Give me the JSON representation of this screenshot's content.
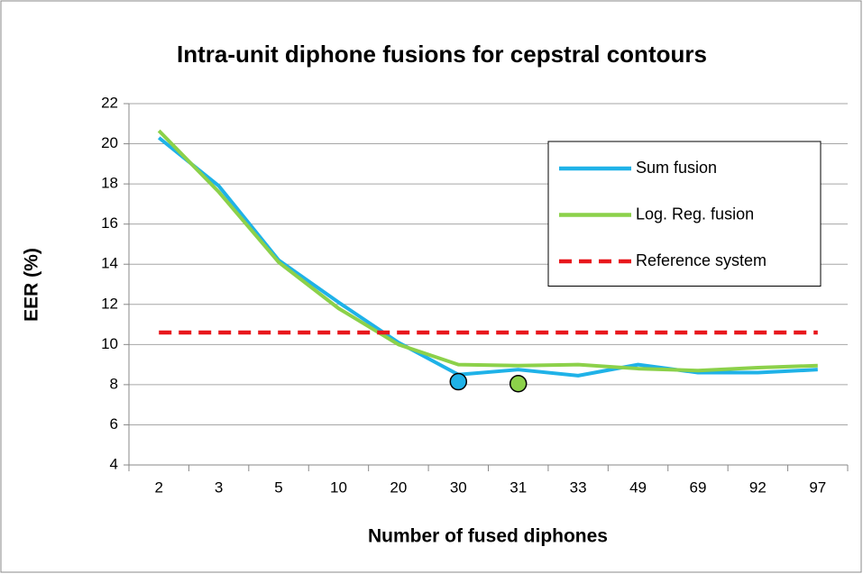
{
  "chart_data": {
    "type": "line",
    "title": "Intra-unit diphone fusions for cepstral contours",
    "x_label": "Number of fused diphones",
    "y_label": "EER (%)",
    "categories": [
      "2",
      "3",
      "5",
      "10",
      "20",
      "30",
      "31",
      "33",
      "49",
      "69",
      "92",
      "97"
    ],
    "series": [
      {
        "name": "Sum fusion",
        "color": "#1fb2e8",
        "values": [
          20.3,
          17.9,
          14.2,
          12.1,
          10.1,
          8.5,
          8.75,
          8.45,
          9.0,
          8.6,
          8.6,
          8.75
        ]
      },
      {
        "name": "Log. Reg. fusion",
        "color": "#8cd14a",
        "values": [
          20.65,
          17.6,
          14.1,
          11.8,
          10.0,
          9.0,
          8.95,
          9.0,
          8.8,
          8.7,
          8.85,
          8.95
        ]
      },
      {
        "name": "Reference system",
        "color": "#e8171c",
        "line_style": "dashed",
        "values": [
          10.6,
          10.6,
          10.6,
          10.6,
          10.6,
          10.6,
          10.6,
          10.6,
          10.6,
          10.6,
          10.6,
          10.6
        ]
      },
      {
        "color": "#1fb2e8",
        "marker": true,
        "values": [
          null,
          null,
          null,
          null,
          null,
          8.15,
          null,
          null,
          null,
          null,
          null,
          null
        ]
      },
      {
        "color": "#8cd14a",
        "marker": true,
        "values": [
          null,
          null,
          null,
          null,
          null,
          null,
          8.05,
          null,
          null,
          null,
          null,
          null
        ]
      }
    ],
    "ylim": [
      4,
      22
    ],
    "yticks": [
      4,
      6,
      8,
      10,
      12,
      14,
      16,
      18,
      20,
      22
    ],
    "grid": true,
    "legend": "upper right"
  }
}
